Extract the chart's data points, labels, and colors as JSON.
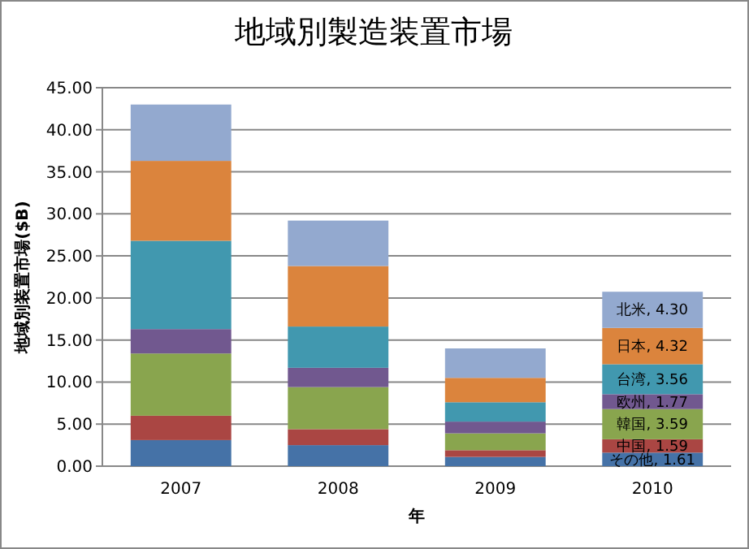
{
  "chart_data": {
    "type": "bar",
    "stacked": true,
    "title": "地域別製造装置市場",
    "xlabel": "年",
    "ylabel": "地域別装置市場($B)",
    "categories": [
      "2007",
      "2008",
      "2009",
      "2010"
    ],
    "series": [
      {
        "color": "#4572a7",
        "values": [
          3.1,
          2.5,
          1.1,
          1.61
        ],
        "value_labels": [
          null,
          null,
          null,
          "その他, 1.61"
        ]
      },
      {
        "color": "#aa4643",
        "values": [
          2.9,
          1.9,
          0.8,
          1.59
        ],
        "value_labels": [
          null,
          null,
          null,
          "中国, 1.59"
        ]
      },
      {
        "color": "#89a54e",
        "values": [
          7.4,
          5.0,
          2.0,
          3.59
        ],
        "value_labels": [
          null,
          null,
          null,
          "韓国, 3.59"
        ]
      },
      {
        "color": "#71588f",
        "values": [
          2.9,
          2.3,
          1.4,
          1.77
        ],
        "value_labels": [
          null,
          null,
          null,
          "欧州, 1.77"
        ]
      },
      {
        "color": "#4198af",
        "values": [
          10.5,
          4.9,
          2.3,
          3.56
        ],
        "value_labels": [
          null,
          null,
          null,
          "台湾, 3.56"
        ]
      },
      {
        "color": "#db843d",
        "values": [
          9.5,
          7.2,
          2.9,
          4.32
        ],
        "value_labels": [
          null,
          null,
          null,
          "日本, 4.32"
        ]
      },
      {
        "color": "#93a9cf",
        "values": [
          6.7,
          5.4,
          3.5,
          4.3
        ],
        "value_labels": [
          null,
          null,
          null,
          "北米, 4.30"
        ]
      }
    ],
    "ylim": [
      0,
      45
    ],
    "yticks": [
      {
        "value": 0,
        "label": "0.00"
      },
      {
        "value": 5,
        "label": "5.00"
      },
      {
        "value": 10,
        "label": "10.00"
      },
      {
        "value": 15,
        "label": "15.00"
      },
      {
        "value": 20,
        "label": "20.00"
      },
      {
        "value": 25,
        "label": "25.00"
      },
      {
        "value": 30,
        "label": "30.00"
      },
      {
        "value": 35,
        "label": "35.00"
      },
      {
        "value": 40,
        "label": "40.00"
      },
      {
        "value": 45,
        "label": "45.00"
      }
    ],
    "grid": "y"
  }
}
